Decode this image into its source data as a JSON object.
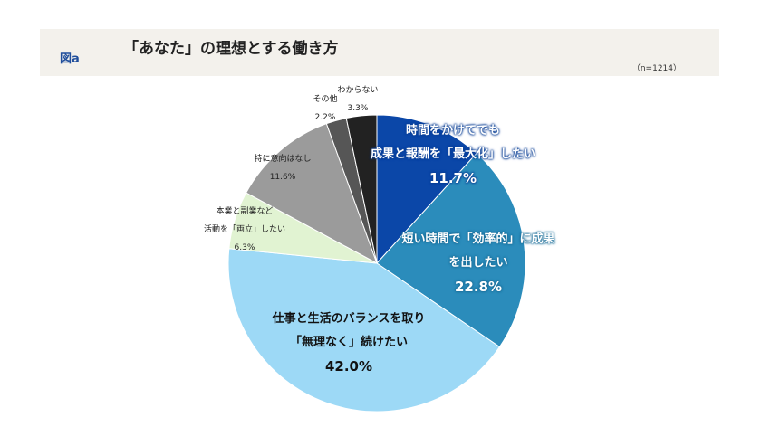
{
  "header": {
    "figure_label": "図a",
    "title": "「あなた」の理想とする働き方",
    "sample": "（n=1214）"
  },
  "chart_data": {
    "type": "pie",
    "title": "「あなた」の理想とする働き方",
    "direction": "clockwise from top",
    "slices": [
      {
        "label_lines": [
          "時間をかけてでも",
          "成果と報酬を「最大化」したい"
        ],
        "value": 11.7,
        "display": "11.7%",
        "color": "#0b47a8"
      },
      {
        "label_lines": [
          "短い時間で「効率的」に成果",
          "を出したい"
        ],
        "value": 22.8,
        "display": "22.8%",
        "color": "#2b8cbb"
      },
      {
        "label_lines": [
          "仕事と生活のバランスを取り",
          "「無理なく」続けたい"
        ],
        "value": 42.0,
        "display": "42.0%",
        "color": "#9dd9f6"
      },
      {
        "label_lines": [
          "本業と副業など",
          "活動を「両立」したい"
        ],
        "value": 6.3,
        "display": "6.3%",
        "color": "#e1f3d2"
      },
      {
        "label_lines": [
          "特に意向はなし"
        ],
        "value": 11.6,
        "display": "11.6%",
        "color": "#9b9b9b"
      },
      {
        "label_lines": [
          "その他"
        ],
        "value": 2.2,
        "display": "2.2%",
        "color": "#565656"
      },
      {
        "label_lines": [
          "わからない"
        ],
        "value": 3.3,
        "display": "3.3%",
        "color": "#222222"
      }
    ]
  }
}
